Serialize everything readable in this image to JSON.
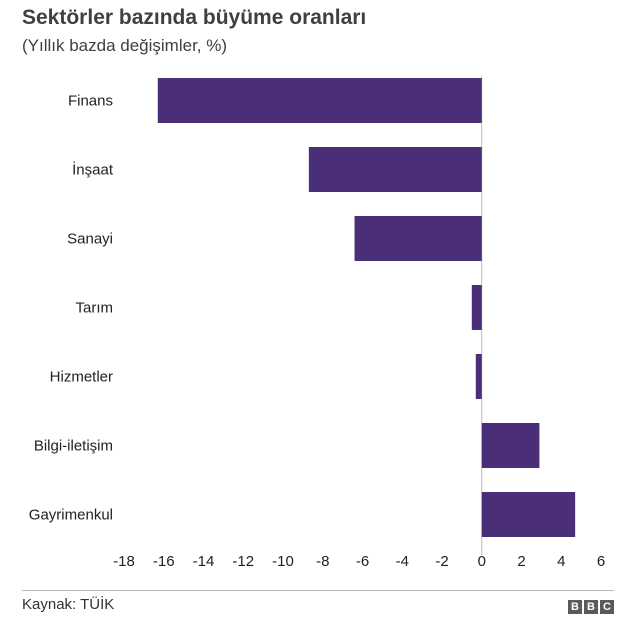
{
  "title": "Sektörler bazında büyüme oranları",
  "subtitle": "(Yıllık bazda değişimler, %)",
  "source": "Kaynak: TÜİK",
  "logo": [
    "B",
    "B",
    "C"
  ],
  "colors": {
    "bar": "#4b2e78",
    "zero_line": "#bbbbbb"
  },
  "chart_data": {
    "type": "bar",
    "orientation": "horizontal",
    "categories": [
      "Finans",
      "İnşaat",
      "Sanayi",
      "Tarım",
      "Hizmetler",
      "Bilgi-iletişim",
      "Gayrimenkul"
    ],
    "values": [
      -16.3,
      -8.7,
      -6.4,
      -0.5,
      -0.3,
      2.9,
      4.7
    ],
    "xlim": [
      -18,
      6
    ],
    "xticks": [
      -18,
      -16,
      -14,
      -12,
      -10,
      -8,
      -6,
      -4,
      -2,
      0,
      2,
      4,
      6
    ],
    "grid": false,
    "legend": "none"
  }
}
